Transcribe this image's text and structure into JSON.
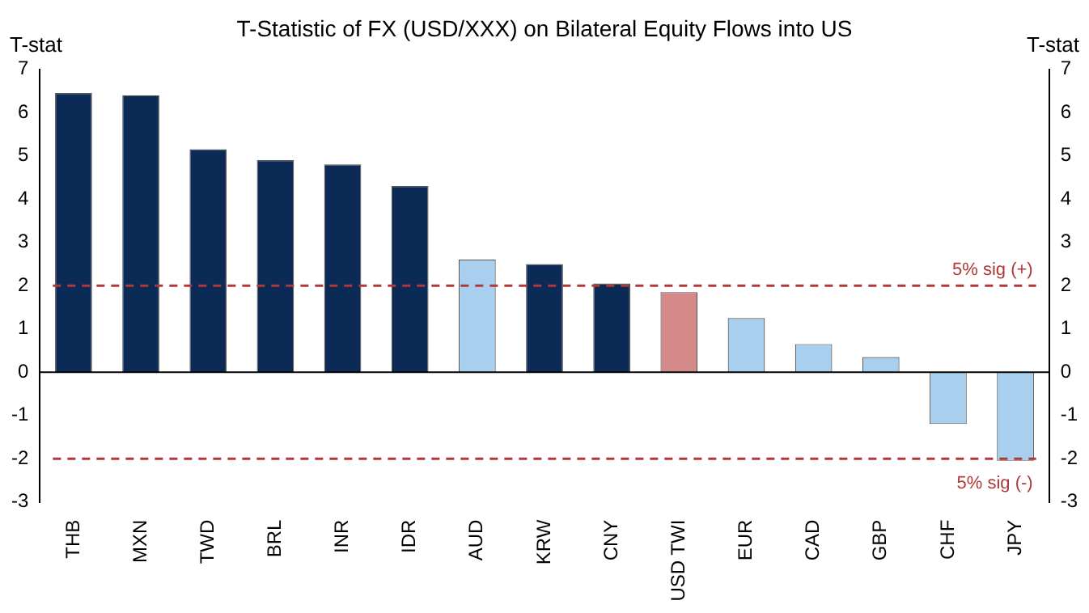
{
  "chart_data": {
    "type": "bar",
    "title": "T-Statistic of FX (USD/XXX) on Bilateral Equity Flows into US",
    "ylabel": "T-stat",
    "y2label": "T-stat",
    "categories": [
      "THB",
      "MXN",
      "TWD",
      "BRL",
      "INR",
      "IDR",
      "AUD",
      "KRW",
      "CNY",
      "USD TWI",
      "EUR",
      "CAD",
      "GBP",
      "CHF",
      "JPY"
    ],
    "values": [
      6.45,
      6.4,
      5.15,
      4.9,
      4.8,
      4.3,
      2.6,
      2.5,
      2.05,
      1.85,
      1.25,
      0.65,
      0.35,
      -1.2,
      -2.05
    ],
    "colors": [
      "#0b2a55",
      "#0b2a55",
      "#0b2a55",
      "#0b2a55",
      "#0b2a55",
      "#0b2a55",
      "#a8d0ee",
      "#0b2a55",
      "#0b2a55",
      "#d48a88",
      "#a8d0ee",
      "#a8d0ee",
      "#a8d0ee",
      "#a8d0ee",
      "#a8d0ee"
    ],
    "ylim": [
      -3,
      7
    ],
    "yticks": [
      -3,
      -2,
      -1,
      0,
      1,
      2,
      3,
      4,
      5,
      6,
      7
    ],
    "y2lim": [
      -3,
      7
    ],
    "y2ticks": [
      -3,
      -2,
      -1,
      0,
      1,
      2,
      3,
      4,
      5,
      6,
      7
    ],
    "ref_lines": [
      {
        "axis": "y",
        "value": 2,
        "label": "5% sig (+)",
        "color": "#b03838",
        "line_style": "dashed"
      },
      {
        "axis": "y",
        "value": -2,
        "label": "5% sig (-)",
        "color": "#b03838",
        "line_style": "dashed"
      }
    ],
    "grid": false,
    "legend": false
  }
}
